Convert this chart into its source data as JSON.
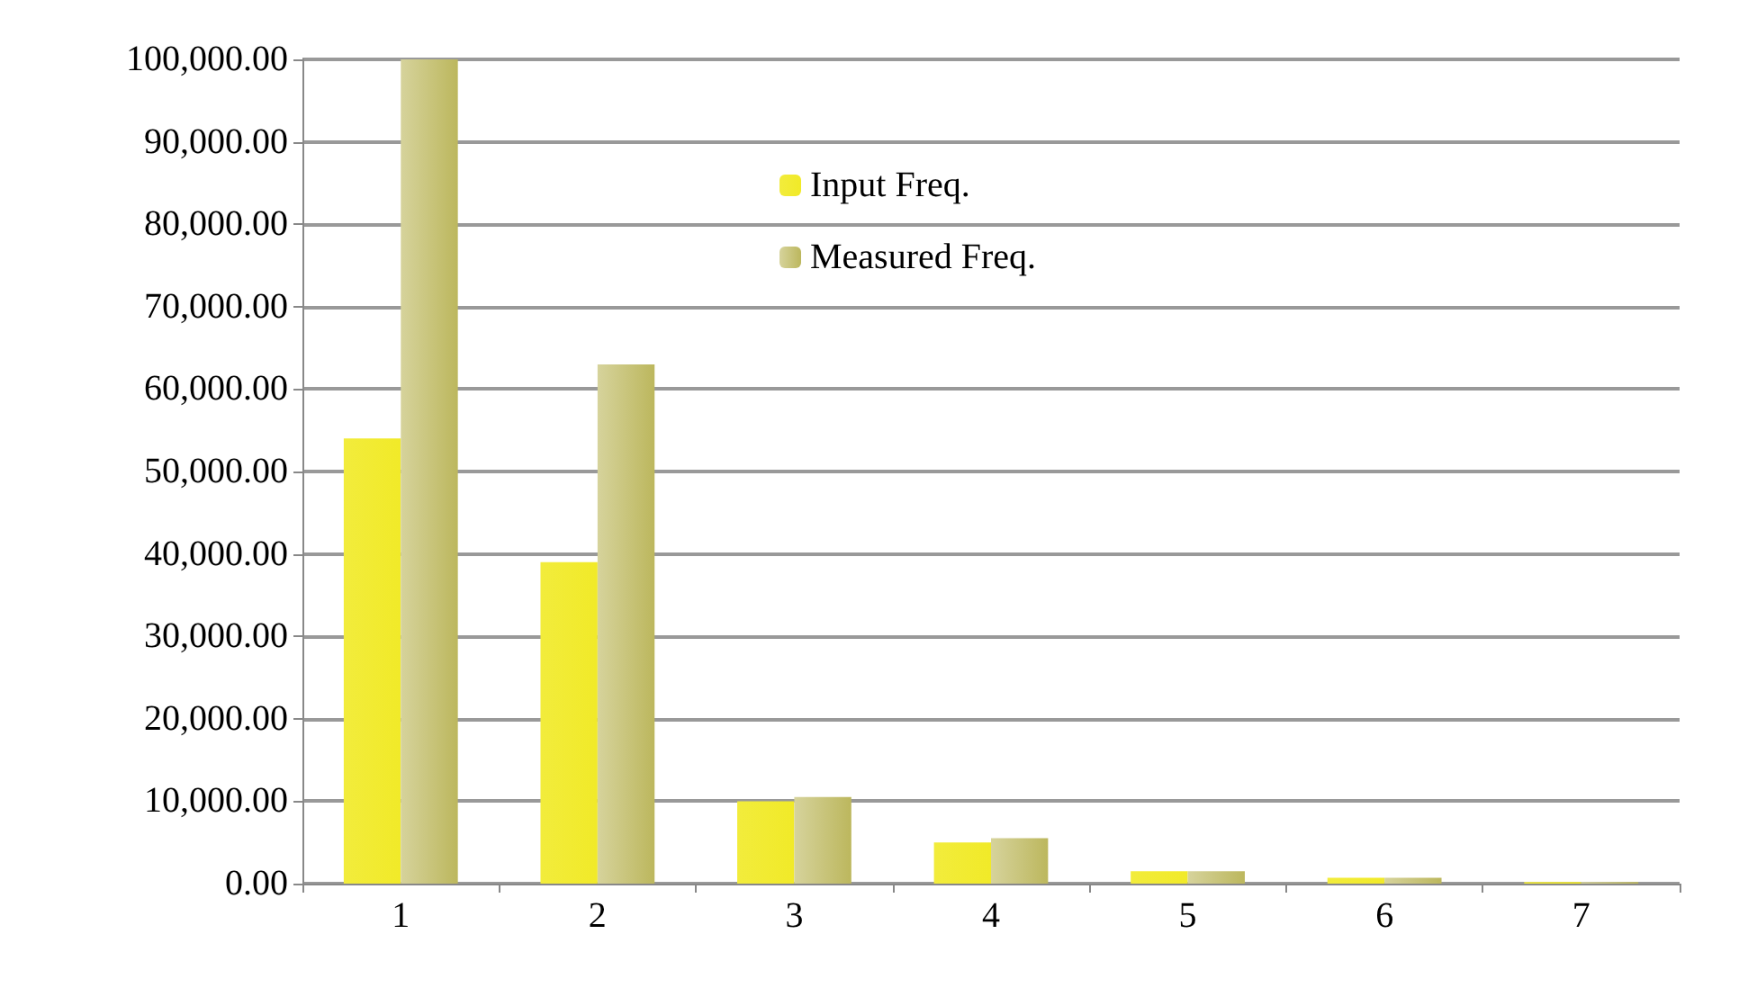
{
  "chart_data": {
    "type": "bar",
    "categories": [
      "1",
      "2",
      "3",
      "4",
      "5",
      "6",
      "7"
    ],
    "series": [
      {
        "name": "Input Freq.",
        "color": "#f2ec3c",
        "values": [
          54000,
          39000,
          10000,
          5000,
          1500,
          700,
          200
        ]
      },
      {
        "name": "Measured Freq.",
        "color": "#d6d39c",
        "values": [
          100000,
          63000,
          10500,
          5500,
          1500,
          700,
          200
        ]
      }
    ],
    "ylim": [
      0,
      100000
    ],
    "yticks": [
      {
        "value": 0,
        "label": "0.00"
      },
      {
        "value": 10000,
        "label": "10,000.00"
      },
      {
        "value": 20000,
        "label": "20,000.00"
      },
      {
        "value": 30000,
        "label": "30,000.00"
      },
      {
        "value": 40000,
        "label": "40,000.00"
      },
      {
        "value": 50000,
        "label": "50,000.00"
      },
      {
        "value": 60000,
        "label": "60,000.00"
      },
      {
        "value": 70000,
        "label": "70,000.00"
      },
      {
        "value": 80000,
        "label": "80,000.00"
      },
      {
        "value": 90000,
        "label": "90,000.00"
      },
      {
        "value": 100000,
        "label": "100,000.00"
      }
    ],
    "grid": "y",
    "legend": "top center"
  }
}
